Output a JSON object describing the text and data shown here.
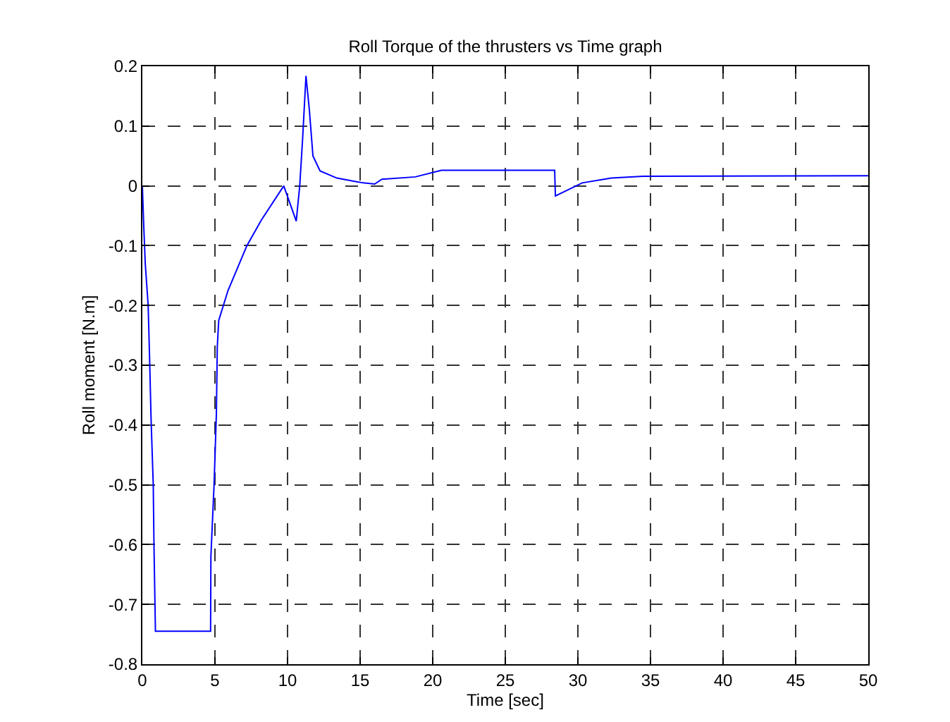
{
  "chart_data": {
    "type": "line",
    "title": "Roll Torque of the thrusters vs Time graph",
    "xlabel": "Time [sec]",
    "ylabel": "Roll moment [N.m]",
    "x": [
      0,
      0.1,
      0.2,
      0.4,
      0.5,
      0.6,
      0.75,
      0.8,
      0.9,
      4.7,
      4.72,
      4.94,
      5.1,
      5.16,
      5.26,
      5.9,
      7.2,
      8.2,
      9.74,
      10.6,
      10.84,
      11.04,
      11.27,
      11.5,
      11.75,
      12.24,
      13.4,
      15.2,
      16.0,
      16.5,
      18.8,
      20.6,
      22.6,
      28.4,
      28.45,
      30.3,
      32.3,
      34.5,
      50
    ],
    "series": [
      {
        "color": "#0000ff",
        "values": [
          0,
          -0.07,
          -0.13,
          -0.2,
          -0.29,
          -0.39,
          -0.5,
          -0.6,
          -0.745,
          -0.745,
          -0.62,
          -0.5,
          -0.38,
          -0.27,
          -0.225,
          -0.175,
          -0.1,
          -0.057,
          0,
          -0.059,
          0,
          0.079,
          0.184,
          0.128,
          0.05,
          0.025,
          0.013,
          0.005,
          0.003,
          0.011,
          0.015,
          0.026,
          0.026,
          0.026,
          -0.017,
          0.005,
          0.013,
          0.016,
          0.017
        ]
      }
    ],
    "xlim": [
      0,
      50
    ],
    "xticks": [
      0,
      5,
      10,
      15,
      20,
      25,
      30,
      35,
      40,
      45,
      50
    ],
    "ylim": [
      -0.8,
      0.2
    ],
    "yticks": [
      -0.8,
      -0.7,
      -0.6,
      -0.5,
      -0.4,
      -0.3,
      -0.2,
      -0.1,
      0,
      0.1,
      0.2
    ],
    "grid": true,
    "line_style": "solid",
    "marker": "none"
  }
}
